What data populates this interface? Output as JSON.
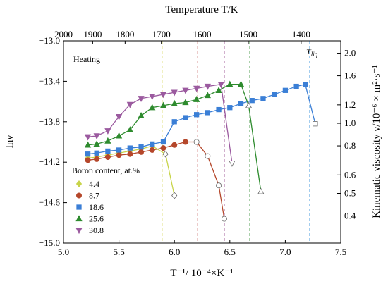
{
  "chart_data": {
    "type": "line",
    "xlabel": "T⁻¹/ 10⁻⁴×K⁻¹",
    "ylabel": "lnν",
    "top_xlabel": "Temperature T/K",
    "right_ylabel": "Kinematic viscosity ν/10⁻⁶ × m²·s⁻¹",
    "xlim": [
      5.0,
      7.5
    ],
    "ylim": [
      -15.0,
      -13.0
    ],
    "x_ticks": [
      5.0,
      5.5,
      6.0,
      6.5,
      7.0,
      7.5
    ],
    "x_tick_labels": [
      "5.0",
      "5.5",
      "6.0",
      "6.5",
      "7.0",
      "7.5"
    ],
    "y_ticks": [
      -15.0,
      -14.6,
      -14.2,
      -13.8,
      -13.4,
      -13.0
    ],
    "y_tick_labels": [
      "−15.0",
      "−14.6",
      "−14.2",
      "−13.8",
      "−13.4",
      "−13.0"
    ],
    "top_ticks": [
      2000,
      1900,
      1800,
      1700,
      1600,
      1500,
      1400
    ],
    "top_tick_labels": [
      "2000",
      "1900",
      "1800",
      "1700",
      "1600",
      "1500",
      "1400"
    ],
    "right_ticks": [
      0.4,
      0.5,
      0.6,
      0.8,
      1.0,
      1.2,
      1.6,
      2.0
    ],
    "right_tick_labels": [
      "0.4",
      "0.5",
      "0.6",
      "0.8",
      "1.0",
      "1.2",
      "1.6",
      "2.0"
    ],
    "annotations": {
      "heating": "Heating",
      "t_liq": "T",
      "t_liq_sub": "liq"
    },
    "legend": {
      "title": "Boron content, at.%",
      "placement": "bottom-left"
    },
    "vlines": [
      {
        "x": 5.89,
        "color": "#d9d96a"
      },
      {
        "x": 6.21,
        "color": "#c0504d"
      },
      {
        "x": 6.45,
        "color": "#9b4f8f"
      },
      {
        "x": 6.68,
        "color": "#2e8b2e"
      },
      {
        "x": 7.22,
        "color": "#4d9ee0"
      }
    ],
    "series": [
      {
        "name": "4.4",
        "color": "#c8d44a",
        "marker": "diamond",
        "x": [
          5.22,
          5.3,
          5.4,
          5.5,
          5.6,
          5.7,
          5.8,
          5.92,
          6.0
        ],
        "y": [
          -14.16,
          -14.15,
          -14.13,
          -14.11,
          -14.09,
          -14.07,
          -14.04,
          -14.12,
          -14.53
        ],
        "open_from": 7
      },
      {
        "name": "8.7",
        "color": "#b5472b",
        "marker": "circle",
        "x": [
          5.22,
          5.3,
          5.4,
          5.5,
          5.6,
          5.7,
          5.8,
          5.9,
          6.0,
          6.1,
          6.2,
          6.3,
          6.4,
          6.45
        ],
        "y": [
          -14.18,
          -14.17,
          -14.15,
          -14.13,
          -14.12,
          -14.1,
          -14.08,
          -14.06,
          -14.03,
          -14.0,
          -14.0,
          -14.14,
          -14.43,
          -14.76
        ],
        "open_from": 10
      },
      {
        "name": "18.6",
        "color": "#3b7fd6",
        "marker": "square",
        "x": [
          5.22,
          5.3,
          5.4,
          5.5,
          5.6,
          5.7,
          5.8,
          5.9,
          6.0,
          6.1,
          6.2,
          6.3,
          6.4,
          6.5,
          6.6,
          6.7,
          6.8,
          6.9,
          7.0,
          7.1,
          7.18,
          7.27
        ],
        "y": [
          -14.12,
          -14.11,
          -14.09,
          -14.08,
          -14.06,
          -14.05,
          -14.02,
          -14.0,
          -13.8,
          -13.76,
          -13.73,
          -13.71,
          -13.68,
          -13.66,
          -13.62,
          -13.59,
          -13.57,
          -13.53,
          -13.49,
          -13.45,
          -13.43,
          -13.82
        ],
        "open_from": 21
      },
      {
        "name": "25.6",
        "color": "#2e8b2e",
        "marker": "triangle-up",
        "x": [
          5.22,
          5.3,
          5.4,
          5.5,
          5.6,
          5.7,
          5.8,
          5.9,
          6.0,
          6.1,
          6.2,
          6.3,
          6.4,
          6.5,
          6.6,
          6.67,
          6.78
        ],
        "y": [
          -14.03,
          -14.02,
          -13.99,
          -13.94,
          -13.88,
          -13.74,
          -13.66,
          -13.64,
          -13.62,
          -13.61,
          -13.58,
          -13.54,
          -13.49,
          -13.43,
          -13.43,
          -13.64,
          -14.49
        ],
        "open_from": 15
      },
      {
        "name": "30.8",
        "color": "#9b5a9f",
        "marker": "triangle-down",
        "x": [
          5.22,
          5.3,
          5.4,
          5.5,
          5.6,
          5.7,
          5.8,
          5.9,
          6.0,
          6.1,
          6.2,
          6.3,
          6.42,
          6.52
        ],
        "y": [
          -13.95,
          -13.94,
          -13.89,
          -13.75,
          -13.63,
          -13.57,
          -13.55,
          -13.53,
          -13.51,
          -13.49,
          -13.47,
          -13.45,
          -13.43,
          -14.21
        ],
        "open_from": 13
      }
    ]
  }
}
